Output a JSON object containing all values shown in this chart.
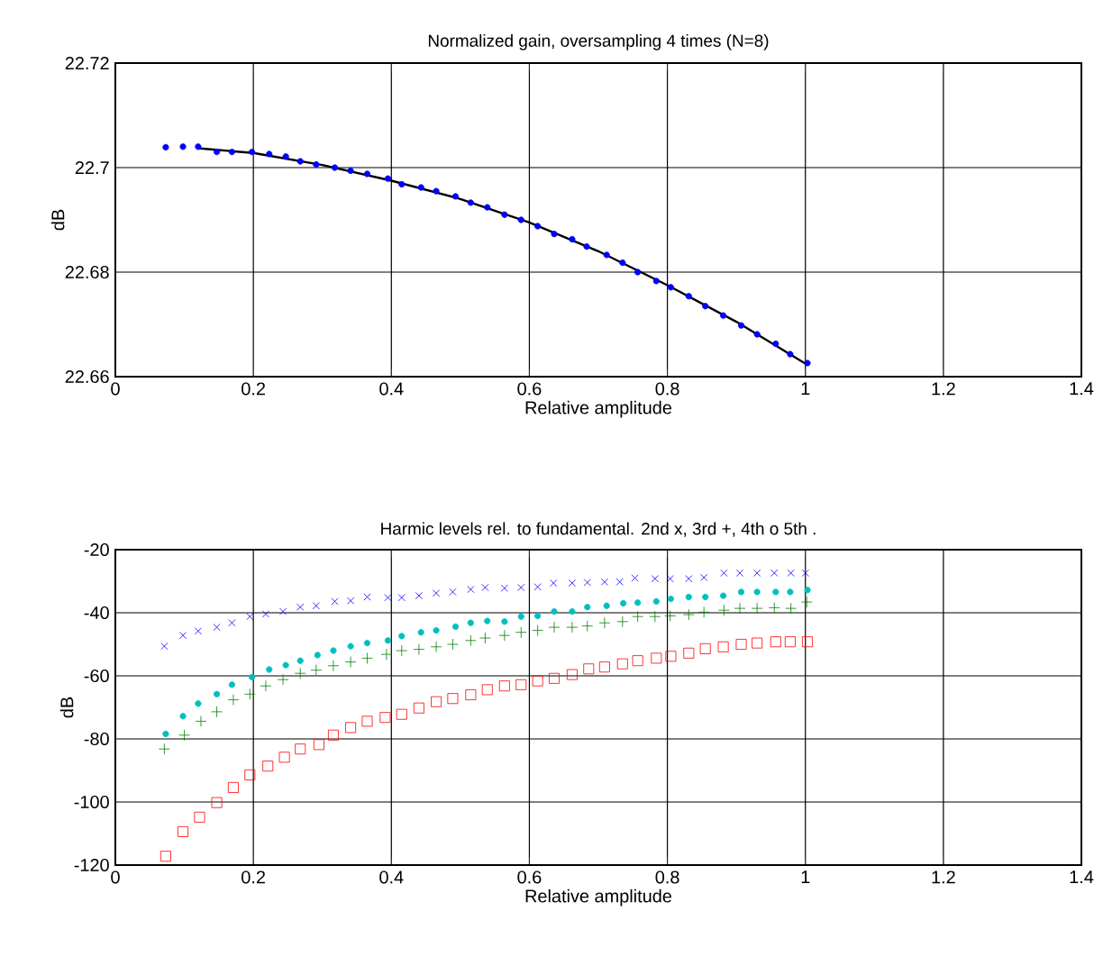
{
  "chart_data": [
    {
      "type": "scatter",
      "title": "Normalized gain, oversampling 4 times (N=8)",
      "xlabel": "Relative amplitude",
      "ylabel": "dB",
      "xlim": [
        0,
        1.4
      ],
      "ylim": [
        22.66,
        22.72
      ],
      "xticks": [
        0,
        0.2,
        0.4,
        0.6,
        0.8,
        1,
        1.2,
        1.4
      ],
      "yticks": [
        22.66,
        22.68,
        22.7,
        22.72
      ],
      "grid": true,
      "series": [
        {
          "color": "#0000ff",
          "marker": "circle",
          "x": [
            0.073,
            0.098,
            0.12,
            0.147,
            0.169,
            0.198,
            0.223,
            0.247,
            0.268,
            0.291,
            0.318,
            0.341,
            0.365,
            0.395,
            0.415,
            0.443,
            0.465,
            0.493,
            0.515,
            0.539,
            0.564,
            0.588,
            0.612,
            0.636,
            0.662,
            0.683,
            0.712,
            0.735,
            0.757,
            0.784,
            0.805,
            0.831,
            0.855,
            0.881,
            0.907,
            0.93,
            0.957,
            0.978,
            1.003
          ],
          "values": [
            22.7039,
            22.704,
            22.704,
            22.703,
            22.703,
            22.703,
            22.7026,
            22.7021,
            22.7012,
            22.7006,
            22.7,
            22.6994,
            22.6988,
            22.6979,
            22.6968,
            22.6962,
            22.6955,
            22.6945,
            22.6933,
            22.6924,
            22.691,
            22.69,
            22.6888,
            22.6873,
            22.6863,
            22.6849,
            22.6833,
            22.6818,
            22.68,
            22.6783,
            22.6771,
            22.6754,
            22.6735,
            22.6717,
            22.6698,
            22.6681,
            22.6663,
            22.6643,
            22.6626
          ]
        },
        {
          "type": "line",
          "color": "#000000",
          "marker": "none",
          "line_style": "solid",
          "x": [
            0.12,
            0.2,
            0.3,
            0.4,
            0.5,
            0.6,
            0.7,
            0.8,
            0.9,
            1.0
          ],
          "values": [
            22.7037,
            22.7028,
            22.7005,
            22.6975,
            22.694,
            22.6895,
            22.684,
            22.6775,
            22.6705,
            22.6625
          ]
        }
      ]
    },
    {
      "type": "scatter",
      "title": "Harmic levels rel. to fundamental. 2nd x, 3rd +, 4th o 5th .",
      "xlabel": "Relative amplitude",
      "ylabel": "dB",
      "xlim": [
        0,
        1.4
      ],
      "ylim": [
        -120,
        -20
      ],
      "xticks": [
        0,
        0.2,
        0.4,
        0.6,
        0.8,
        1,
        1.2,
        1.4
      ],
      "yticks": [
        -120,
        -100,
        -80,
        -60,
        -40,
        -20
      ],
      "grid": true,
      "series": [
        {
          "color": "#0000ff",
          "marker": "cross",
          "x": [
            0.071,
            0.098,
            0.12,
            0.147,
            0.169,
            0.195,
            0.218,
            0.243,
            0.268,
            0.291,
            0.318,
            0.341,
            0.365,
            0.395,
            0.415,
            0.44,
            0.465,
            0.489,
            0.515,
            0.536,
            0.564,
            0.588,
            0.612,
            0.635,
            0.662,
            0.684,
            0.709,
            0.731,
            0.753,
            0.782,
            0.804,
            0.831,
            0.853,
            0.882,
            0.905,
            0.93,
            0.955,
            0.979,
            1.0
          ],
          "values": [
            -50.6,
            -47.2,
            -45.8,
            -44.6,
            -43.2,
            -41.2,
            -40.4,
            -39.6,
            -38.2,
            -37.8,
            -36.4,
            -36.2,
            -35,
            -35.2,
            -35.2,
            -34.6,
            -33.8,
            -33.4,
            -32.6,
            -32,
            -32.2,
            -32,
            -31.8,
            -30.6,
            -30.6,
            -30.4,
            -30.2,
            -30.2,
            -29,
            -29.2,
            -29.2,
            -29.2,
            -28.8,
            -27.4,
            -27.4,
            -27.4,
            -27.4,
            -27.4,
            -27.4
          ]
        },
        {
          "color": "#008000",
          "marker": "plus",
          "x": [
            0.071,
            0.1,
            0.124,
            0.147,
            0.171,
            0.195,
            0.218,
            0.243,
            0.268,
            0.291,
            0.316,
            0.341,
            0.365,
            0.393,
            0.415,
            0.44,
            0.465,
            0.489,
            0.515,
            0.536,
            0.564,
            0.588,
            0.612,
            0.636,
            0.662,
            0.684,
            0.709,
            0.735,
            0.757,
            0.782,
            0.804,
            0.831,
            0.853,
            0.882,
            0.905,
            0.93,
            0.955,
            0.979,
            1.002
          ],
          "values": [
            -83.2,
            -78.8,
            -74.4,
            -71.4,
            -67.6,
            -65.8,
            -63.2,
            -61.2,
            -59.2,
            -58.2,
            -56.8,
            -55.6,
            -54.4,
            -53.2,
            -52,
            -51.6,
            -50.8,
            -50,
            -48.8,
            -48,
            -47.2,
            -46.2,
            -45.6,
            -44.6,
            -44.6,
            -44.2,
            -43.2,
            -42.8,
            -41.2,
            -41.2,
            -41,
            -40.6,
            -39.8,
            -39.2,
            -38.6,
            -38.6,
            -38.4,
            -38.6,
            -36.6
          ]
        },
        {
          "color": "#00bfbf",
          "marker": "circle",
          "x": [
            0.073,
            0.098,
            0.12,
            0.147,
            0.169,
            0.198,
            0.223,
            0.247,
            0.268,
            0.293,
            0.316,
            0.341,
            0.365,
            0.395,
            0.415,
            0.443,
            0.465,
            0.493,
            0.515,
            0.539,
            0.564,
            0.588,
            0.612,
            0.636,
            0.662,
            0.684,
            0.712,
            0.736,
            0.757,
            0.784,
            0.805,
            0.831,
            0.855,
            0.881,
            0.907,
            0.93,
            0.957,
            0.978,
            1.003
          ],
          "values": [
            -78.4,
            -72.8,
            -68.8,
            -65.8,
            -62.8,
            -60.4,
            -58,
            -56.6,
            -55.2,
            -53.4,
            -52,
            -50.6,
            -49.6,
            -48.8,
            -47.4,
            -46.2,
            -45.6,
            -44.4,
            -43.2,
            -42.6,
            -42.8,
            -41.2,
            -41,
            -39.6,
            -39.6,
            -38.2,
            -37.8,
            -37,
            -36.8,
            -36.4,
            -35.6,
            -35,
            -35,
            -34.6,
            -33.4,
            -33.4,
            -33.4,
            -33.4,
            -32.8
          ]
        },
        {
          "color": "#ff0000",
          "marker": "square",
          "x": [
            0.073,
            0.098,
            0.122,
            0.147,
            0.171,
            0.195,
            0.221,
            0.245,
            0.268,
            0.295,
            0.316,
            0.341,
            0.365,
            0.391,
            0.415,
            0.44,
            0.465,
            0.489,
            0.515,
            0.539,
            0.564,
            0.588,
            0.612,
            0.636,
            0.662,
            0.686,
            0.709,
            0.735,
            0.757,
            0.784,
            0.805,
            0.831,
            0.855,
            0.881,
            0.907,
            0.93,
            0.957,
            0.978,
            1.003
          ],
          "values": [
            -117.2,
            -109.4,
            -104.8,
            -100.2,
            -95.4,
            -91.4,
            -88.6,
            -85.8,
            -83.2,
            -81.8,
            -78.8,
            -76.4,
            -74.4,
            -73.2,
            -72.2,
            -70.2,
            -68.2,
            -67.2,
            -66,
            -64.4,
            -63.2,
            -62.8,
            -61.6,
            -60.8,
            -59.6,
            -57.8,
            -57.2,
            -56.2,
            -55.2,
            -54.4,
            -53.8,
            -52.8,
            -51.4,
            -50.8,
            -50,
            -49.6,
            -49.2,
            -49.2,
            -49.2
          ]
        }
      ]
    }
  ]
}
